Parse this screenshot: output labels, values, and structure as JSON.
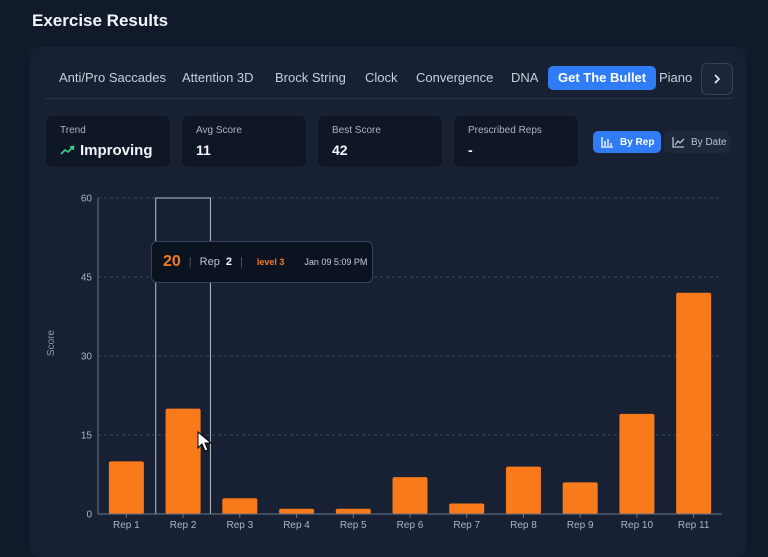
{
  "page": {
    "title": "Exercise Results"
  },
  "tabs": [
    {
      "label": "Anti/Pro Saccades",
      "active": false
    },
    {
      "label": "Attention 3D",
      "active": false
    },
    {
      "label": "Brock String",
      "active": false
    },
    {
      "label": "Clock",
      "active": false
    },
    {
      "label": "Convergence",
      "active": false
    },
    {
      "label": "DNA",
      "active": false
    },
    {
      "label": "Get The Bullet",
      "active": true
    },
    {
      "label": "Piano",
      "active": false
    }
  ],
  "stats": {
    "trend": {
      "label": "Trend",
      "value": "Improving",
      "icon": "trend-up-icon",
      "color": "#3ecf8e"
    },
    "avg": {
      "label": "Avg Score",
      "value": "11"
    },
    "best": {
      "label": "Best Score",
      "value": "42"
    },
    "prescribed": {
      "label": "Prescribed Reps",
      "value": "-"
    }
  },
  "view_toggle": {
    "by_rep": "By Rep",
    "by_date": "By Date",
    "selected": "by_rep"
  },
  "tooltip": {
    "score": "20",
    "rep_label": "Rep",
    "rep": "2",
    "level": "level 3",
    "date": "Jan 09 5:09 PM"
  },
  "colors": {
    "bar": "#f97a1a",
    "accent": "#2f7cf6",
    "background": "#111a2b"
  },
  "chart_data": {
    "type": "bar",
    "categories": [
      "Rep 1",
      "Rep 2",
      "Rep 3",
      "Rep 4",
      "Rep 5",
      "Rep 6",
      "Rep 7",
      "Rep 8",
      "Rep 9",
      "Rep 10",
      "Rep 11"
    ],
    "values": [
      10,
      20,
      3,
      1,
      1,
      7,
      2,
      9,
      6,
      19,
      42
    ],
    "ylabel": "Score",
    "ylim": [
      0,
      60
    ],
    "yticks": [
      0,
      15,
      30,
      45,
      60
    ],
    "grid": true,
    "highlighted_category": "Rep 2"
  }
}
